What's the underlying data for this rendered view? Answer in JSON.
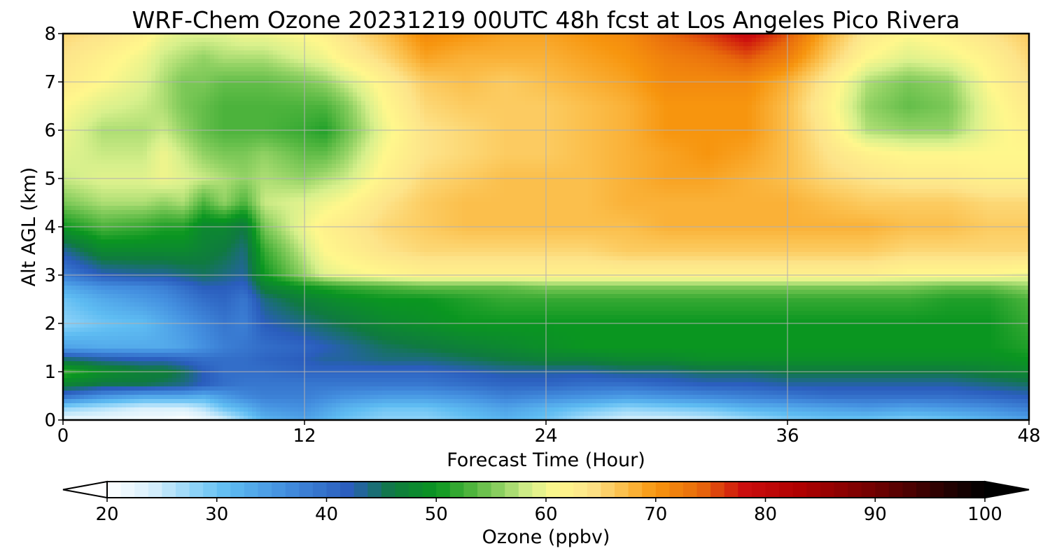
{
  "chart_data": {
    "type": "heatmap",
    "title": "WRF-Chem Ozone  20231219 00UTC 48h fcst at Los Angeles Pico Rivera",
    "xlabel": "Forecast Time (Hour)",
    "ylabel": "Alt AGL (km)",
    "xlim": [
      0,
      48
    ],
    "ylim": [
      0,
      8
    ],
    "x_ticks": [
      "0",
      "12",
      "24",
      "36",
      "48"
    ],
    "y_ticks": [
      "0",
      "1",
      "2",
      "3",
      "4",
      "5",
      "6",
      "7",
      "8"
    ],
    "grid": true,
    "x": [
      0,
      2,
      4,
      5,
      6,
      7,
      8,
      9,
      10,
      12,
      13,
      14,
      16,
      18,
      20,
      22,
      24,
      26,
      28,
      30,
      32,
      34,
      36,
      38,
      40,
      42,
      44,
      46,
      48
    ],
    "y": [
      0,
      0.25,
      0.5,
      0.75,
      1,
      1.25,
      1.5,
      2,
      2.5,
      2.75,
      3,
      3.5,
      4,
      4.5,
      5,
      5.5,
      6,
      6.5,
      7,
      7.5,
      8
    ],
    "z": [
      [
        22,
        22,
        21,
        21,
        20,
        22,
        24,
        28,
        32,
        34,
        32,
        30,
        28,
        28,
        30,
        32,
        30,
        26,
        24,
        24,
        25,
        27,
        29,
        30,
        30,
        29,
        30,
        32,
        34
      ],
      [
        28,
        26,
        24,
        24,
        24,
        26,
        30,
        32,
        35,
        36,
        34,
        32,
        30,
        30,
        32,
        34,
        32,
        30,
        28,
        29,
        30,
        32,
        33,
        34,
        35,
        34,
        35,
        36,
        38
      ],
      [
        40,
        36,
        34,
        34,
        34,
        33,
        35,
        37,
        38,
        38,
        37,
        36,
        35,
        35,
        36,
        38,
        37,
        36,
        35,
        36,
        37,
        38,
        39,
        40,
        40,
        40,
        40,
        41,
        42
      ],
      [
        48,
        46,
        46,
        45,
        44,
        42,
        40,
        39,
        39,
        39,
        39,
        39,
        39,
        39,
        40,
        41,
        41,
        40,
        40,
        41,
        42,
        42,
        43,
        43,
        43,
        43,
        43,
        44,
        45
      ],
      [
        52,
        49,
        47,
        47,
        45,
        42,
        40,
        40,
        40,
        41,
        41,
        41,
        41,
        41,
        42,
        43,
        43,
        43,
        44,
        44,
        45,
        45,
        46,
        46,
        46,
        46,
        46,
        47,
        48
      ],
      [
        45,
        43,
        42,
        42,
        41,
        40,
        40,
        40,
        41,
        42,
        43,
        43,
        44,
        44,
        45,
        46,
        47,
        47,
        48,
        48,
        49,
        49,
        49,
        49,
        49,
        49,
        49,
        49,
        50
      ],
      [
        34,
        33,
        33,
        33,
        34,
        36,
        38,
        39,
        40,
        41,
        42,
        43,
        45,
        46,
        47,
        48,
        49,
        50,
        50,
        50,
        50,
        50,
        50,
        50,
        50,
        50,
        50,
        50,
        51
      ],
      [
        28,
        30,
        31,
        33,
        35,
        37,
        39,
        38,
        42,
        44,
        45,
        46,
        48,
        49,
        50,
        50,
        50,
        50,
        50,
        50,
        50,
        50,
        50,
        50,
        50,
        50,
        50,
        50,
        52
      ],
      [
        30,
        33,
        35,
        36,
        38,
        40,
        41,
        39,
        44,
        47,
        48,
        49,
        50,
        50,
        51,
        52,
        52,
        52,
        52,
        52,
        52,
        52,
        52,
        52,
        52,
        52,
        51,
        51,
        53
      ],
      [
        33,
        36,
        37,
        38,
        40,
        42,
        42,
        41,
        47,
        50,
        51,
        52,
        53,
        54,
        54,
        54,
        55,
        55,
        55,
        55,
        55,
        55,
        55,
        55,
        55,
        55,
        54,
        54,
        56
      ],
      [
        38,
        42,
        43,
        43,
        44,
        45,
        44,
        43,
        50,
        56,
        59,
        60,
        61,
        62,
        62,
        62,
        62,
        62,
        62,
        62,
        62,
        62,
        62,
        62,
        62,
        61,
        61,
        61,
        60
      ],
      [
        43,
        48,
        48,
        48,
        48,
        47,
        46,
        44,
        52,
        58,
        61,
        62,
        64,
        65,
        65,
        65,
        65,
        65,
        66,
        66,
        66,
        66,
        66,
        66,
        66,
        65,
        65,
        65,
        65
      ],
      [
        50,
        53,
        52,
        51,
        51,
        48,
        48,
        46,
        55,
        60,
        62,
        63,
        65,
        66,
        67,
        67,
        67,
        67,
        67,
        68,
        68,
        68,
        68,
        68,
        68,
        67,
        67,
        66,
        66
      ],
      [
        55,
        57,
        57,
        56,
        57,
        53,
        56,
        53,
        58,
        59,
        60,
        61,
        64,
        66,
        67,
        67,
        67,
        67,
        68,
        68,
        68,
        68,
        68,
        67,
        66,
        66,
        66,
        65,
        65
      ],
      [
        58,
        59,
        59,
        60,
        59,
        58,
        57,
        56,
        57,
        56,
        57,
        58,
        62,
        65,
        66,
        67,
        67,
        67,
        68,
        69,
        69,
        68,
        67,
        65,
        64,
        63,
        63,
        62,
        62
      ],
      [
        59,
        58,
        58,
        60,
        58,
        56,
        55,
        55,
        56,
        54,
        54,
        56,
        61,
        64,
        65,
        66,
        66,
        67,
        68,
        69,
        70,
        69,
        67,
        64,
        62,
        61,
        61,
        61,
        61
      ],
      [
        60,
        57,
        57,
        58,
        56,
        54,
        53,
        53,
        53,
        52,
        51,
        54,
        60,
        64,
        65,
        66,
        66,
        67,
        68,
        70,
        70,
        70,
        67,
        63,
        57,
        56,
        56,
        60,
        62
      ],
      [
        61,
        59,
        58,
        57,
        55,
        54,
        53,
        53,
        53,
        53,
        53,
        55,
        61,
        65,
        66,
        66,
        66,
        67,
        68,
        70,
        70,
        70,
        67,
        62,
        56,
        54,
        55,
        60,
        63
      ],
      [
        63,
        61,
        59,
        57,
        55,
        55,
        54,
        54,
        54,
        55,
        56,
        58,
        62,
        66,
        67,
        66,
        67,
        68,
        69,
        71,
        71,
        71,
        68,
        63,
        57,
        55,
        56,
        61,
        64
      ],
      [
        64,
        62,
        60,
        58,
        57,
        56,
        57,
        57,
        57,
        59,
        60,
        62,
        65,
        69,
        68,
        68,
        68,
        69,
        70,
        72,
        73,
        75,
        72,
        66,
        61,
        59,
        60,
        62,
        65
      ],
      [
        65,
        64,
        62,
        60,
        59,
        59,
        59,
        60,
        60,
        61,
        62,
        64,
        67,
        71,
        70,
        69,
        69,
        70,
        71,
        74,
        76,
        79,
        75,
        68,
        63,
        61,
        62,
        64,
        66
      ]
    ],
    "colorbar": {
      "label": "Ozone  (ppbv)",
      "min": 20,
      "max": 100,
      "extend": "both",
      "ticks": [
        "20",
        "30",
        "40",
        "50",
        "60",
        "70",
        "80",
        "90",
        "100"
      ],
      "colors": [
        {
          "v": 20,
          "c": "#ffffff"
        },
        {
          "v": 24,
          "c": "#d8f0fc"
        },
        {
          "v": 28,
          "c": "#8ed3f8"
        },
        {
          "v": 31,
          "c": "#5ebcf2"
        },
        {
          "v": 36,
          "c": "#4490e0"
        },
        {
          "v": 42,
          "c": "#2a5dbd"
        },
        {
          "v": 46,
          "c": "#0f7a40"
        },
        {
          "v": 50,
          "c": "#0a9620"
        },
        {
          "v": 53,
          "c": "#4cb33c"
        },
        {
          "v": 56,
          "c": "#92d264"
        },
        {
          "v": 58.5,
          "c": "#d8f08c"
        },
        {
          "v": 61,
          "c": "#fff78c"
        },
        {
          "v": 64,
          "c": "#fde48a"
        },
        {
          "v": 67,
          "c": "#fbbf4c"
        },
        {
          "v": 70,
          "c": "#f7950e"
        },
        {
          "v": 74,
          "c": "#e86a0c"
        },
        {
          "v": 78,
          "c": "#cc0e0e"
        },
        {
          "v": 83,
          "c": "#b00000"
        },
        {
          "v": 90,
          "c": "#700000"
        },
        {
          "v": 96,
          "c": "#2a0000"
        },
        {
          "v": 100,
          "c": "#000000"
        }
      ]
    }
  }
}
